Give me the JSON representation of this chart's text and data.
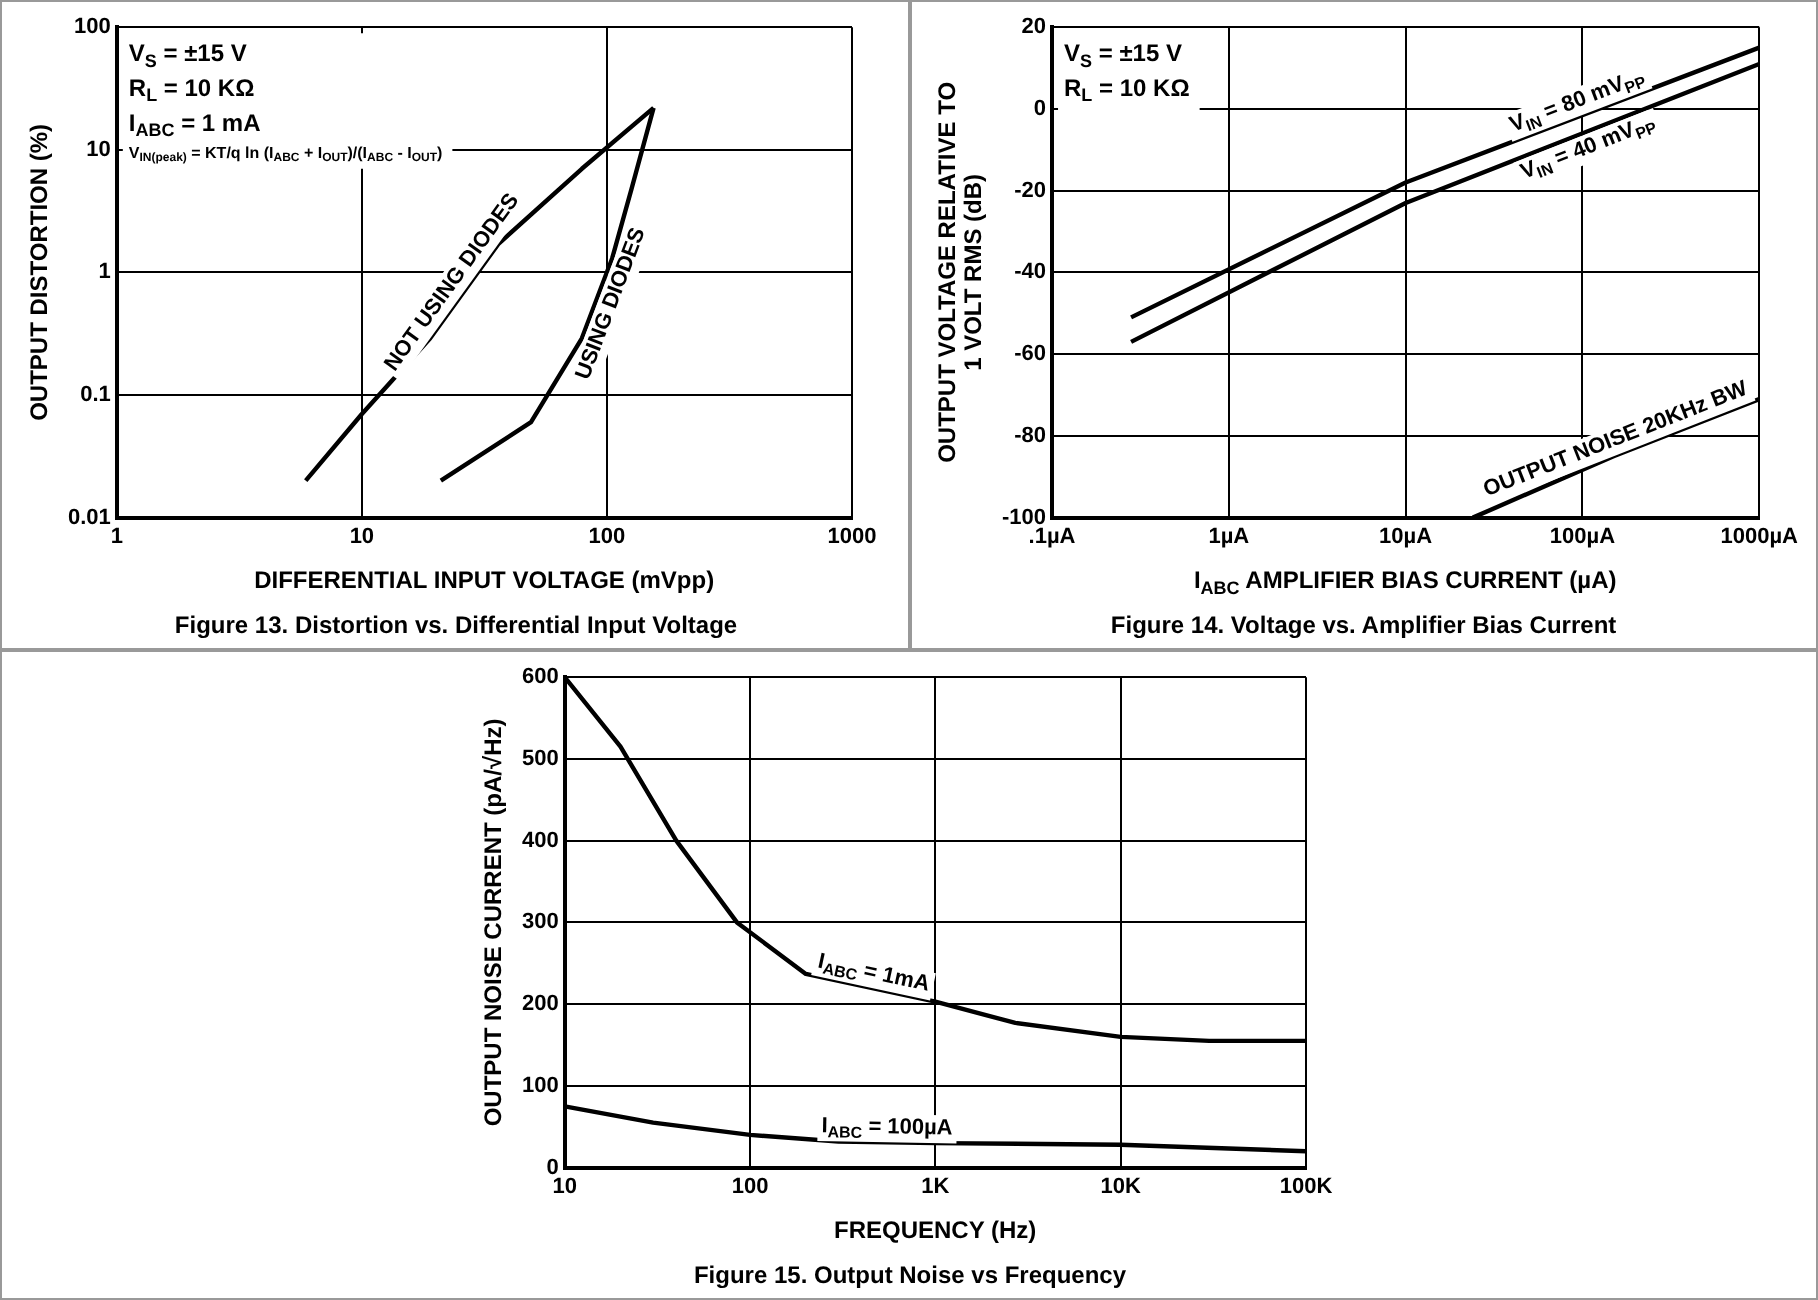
{
  "chart_data": [
    {
      "type": "line",
      "title": "Figure 13. Distortion vs. Differential Input Voltage",
      "xlabel": "DIFFERENTIAL INPUT VOLTAGE (mVpp)",
      "ylabel": "OUTPUT DISTORTION (%)",
      "annotations": [
        "V$_{S}$ = ±15 V",
        "R$_{L}$ = 10 KΩ",
        "I$_{ABC}$ = 1 mA",
        "V$_{IN(peak)}$ = KT/q ln (I$_{ABC}$ + I$_{OUT}$)/(I$_{ABC}$ - I$_{OUT}$)"
      ],
      "log": "xy",
      "xlim": [
        1,
        1000
      ],
      "ylim": [
        0.01,
        100
      ],
      "xticks": [
        1,
        10,
        100,
        1000
      ],
      "yticks": [
        0.01,
        0.1,
        1,
        10,
        100
      ],
      "grid": true,
      "series": [
        {
          "name": "NOT USING DIODES",
          "color": "#000000",
          "x": [
            5.9,
            10,
            19,
            36,
            79,
            155
          ],
          "values": [
            0.02,
            0.07,
            0.29,
            1.7,
            7,
            22
          ]
        },
        {
          "name": "USING DIODES",
          "color": "#000000",
          "x": [
            21,
            49,
            79,
            105,
            126,
            155
          ],
          "values": [
            0.02,
            0.06,
            0.29,
            1.3,
            4.8,
            22
          ]
        }
      ]
    },
    {
      "type": "line",
      "title": "Figure 14. Voltage vs. Amplifier Bias Current",
      "xlabel": "I$_{ABC}$ AMPLIFIER BIAS CURRENT (µA)",
      "ylabel": "OUTPUT VOLTAGE RELATIVE TO\n1 VOLT RMS (dB)",
      "annotations": [
        "V$_{S}$ = ±15 V",
        "R$_{L}$ = 10 KΩ"
      ],
      "log": "x",
      "xlim": [
        0.1,
        1000
      ],
      "ylim": [
        -100,
        20
      ],
      "xticks": [
        {
          "value": 0.1,
          "label": ".1µA"
        },
        {
          "value": 1,
          "label": "1µA"
        },
        {
          "value": 10,
          "label": "10µA"
        },
        {
          "value": 100,
          "label": "100µA"
        },
        {
          "value": 1000,
          "label": "1000µA"
        }
      ],
      "yticks": [
        -100,
        -80,
        -60,
        -40,
        -20,
        0,
        20
      ],
      "grid": true,
      "series": [
        {
          "name": "V$_{IN}$ = 80 mV$_{PP}$",
          "color": "#000000",
          "x": [
            0.28,
            10,
            1000
          ],
          "values": [
            -51,
            -18,
            15
          ]
        },
        {
          "name": "V$_{IN}$ = 40 mV$_{PP}$",
          "color": "#000000",
          "x": [
            0.28,
            10,
            1000
          ],
          "values": [
            -57,
            -23,
            11
          ]
        },
        {
          "name": "OUTPUT NOISE 20KHz BW",
          "color": "#000000",
          "x": [
            24,
            150,
            1000
          ],
          "values": [
            -100,
            -85,
            -71
          ]
        }
      ]
    },
    {
      "type": "line",
      "title": "Figure 15. Output Noise vs Frequency",
      "xlabel": "FREQUENCY (Hz)",
      "ylabel": "OUTPUT NOISE CURRENT (pA/√Hz)",
      "log": "x",
      "xlim": [
        10,
        100000
      ],
      "ylim": [
        0,
        600
      ],
      "xticks": [
        10,
        100,
        {
          "value": 1000,
          "label": "1K"
        },
        {
          "value": 10000,
          "label": "10K"
        },
        {
          "value": 100000,
          "label": "100K"
        }
      ],
      "yticks": [
        0,
        100,
        200,
        300,
        400,
        500,
        600
      ],
      "grid": true,
      "series": [
        {
          "name": "I$_{ABC}$ = 1mA",
          "color": "#000000",
          "x": [
            10,
            20,
            40,
            85,
            200,
            1000,
            2700,
            10000,
            30000,
            100000
          ],
          "values": [
            600,
            515,
            400,
            300,
            237,
            203,
            177,
            160,
            155,
            155
          ]
        },
        {
          "name": "I$_{ABC}$ = 100µA",
          "color": "#000000",
          "x": [
            10,
            30,
            100,
            300,
            1000,
            10000,
            100000
          ],
          "values": [
            75,
            55,
            40,
            32,
            30,
            28,
            20
          ]
        }
      ]
    }
  ]
}
